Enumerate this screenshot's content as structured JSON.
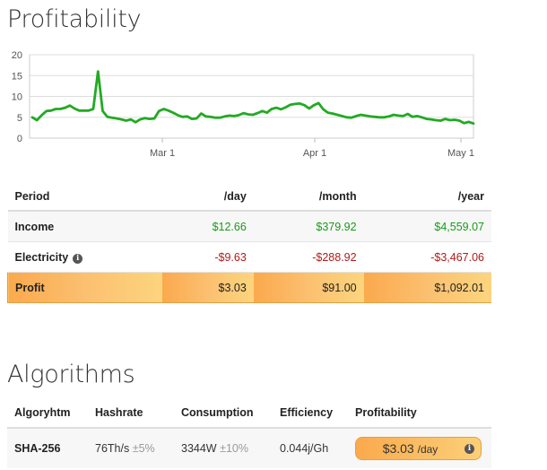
{
  "profitability": {
    "title": "Profitability",
    "chart_data": {
      "type": "line",
      "y_ticks": [
        "20",
        "15",
        "10",
        "5",
        "0"
      ],
      "x_ticks": [
        "Mar 1",
        "Apr 1",
        "May 1"
      ],
      "ylim": [
        0,
        20
      ],
      "line_color": "#22aa22",
      "series": [
        {
          "values": [
            5,
            4.3,
            5.5,
            6.5,
            6.6,
            7,
            7,
            7.3,
            7.8,
            7.1,
            6.6,
            6.6,
            6.6,
            7,
            16,
            6.5,
            5.1,
            4.9,
            4.7,
            4.5,
            4.2,
            4.5,
            3.8,
            4.5,
            4.8,
            4.6,
            4.7,
            6.5,
            7,
            6.6,
            6.1,
            5.5,
            5.1,
            5.2,
            4.6,
            4.7,
            5.9,
            5.2,
            5.1,
            4.9,
            4.9,
            5.2,
            5.4,
            5.3,
            5.5,
            6,
            5.7,
            5.6,
            6,
            6.5,
            6.1,
            7,
            7.3,
            6.9,
            7.4,
            8,
            8.2,
            8.3,
            7.9,
            7.1,
            7.9,
            8.4,
            6.9,
            6.1,
            5.9,
            5.6,
            5.3,
            5,
            4.9,
            5.3,
            5.6,
            5.4,
            5.2,
            5.1,
            5,
            5,
            5.2,
            5.6,
            5.4,
            5.3,
            5.8,
            5.1,
            5.3,
            5.0,
            4.6,
            4.5,
            4.3,
            4.2,
            4.6,
            4.3,
            4.4,
            4.2,
            3.6,
            3.9,
            3.5
          ]
        }
      ]
    },
    "table": {
      "headers": [
        "Period",
        "/day",
        "/month",
        "/year"
      ],
      "rows": [
        {
          "label": "Income",
          "day": "$12.66",
          "month": "$379.92",
          "year": "$4,559.07"
        },
        {
          "label": "Electricity",
          "day": "-$9.63",
          "month": "-$288.92",
          "year": "-$3,467.06"
        },
        {
          "label": "Profit",
          "day": "$3.03",
          "month": "$91.00",
          "year": "$1,092.01"
        }
      ]
    },
    "colors": {
      "positive": "#1a9a1a",
      "negative": "#b11a1a",
      "profit_bg": "#fbb35a"
    },
    "info_icon": "info-circle-icon"
  },
  "algorithms": {
    "title": "Algorithms",
    "headers": [
      "Algoryhtm",
      "Hashrate",
      "Consumption",
      "Efficiency",
      "Profitability"
    ],
    "rows": [
      {
        "algorithm": "SHA-256",
        "hashrate": "76Th/s",
        "hashrate_tol": "±5%",
        "consumption": "3344W",
        "consumption_tol": "±10%",
        "efficiency": "0.044j/Gh",
        "profit_value": "$3.03",
        "profit_unit": "/day"
      }
    ]
  }
}
